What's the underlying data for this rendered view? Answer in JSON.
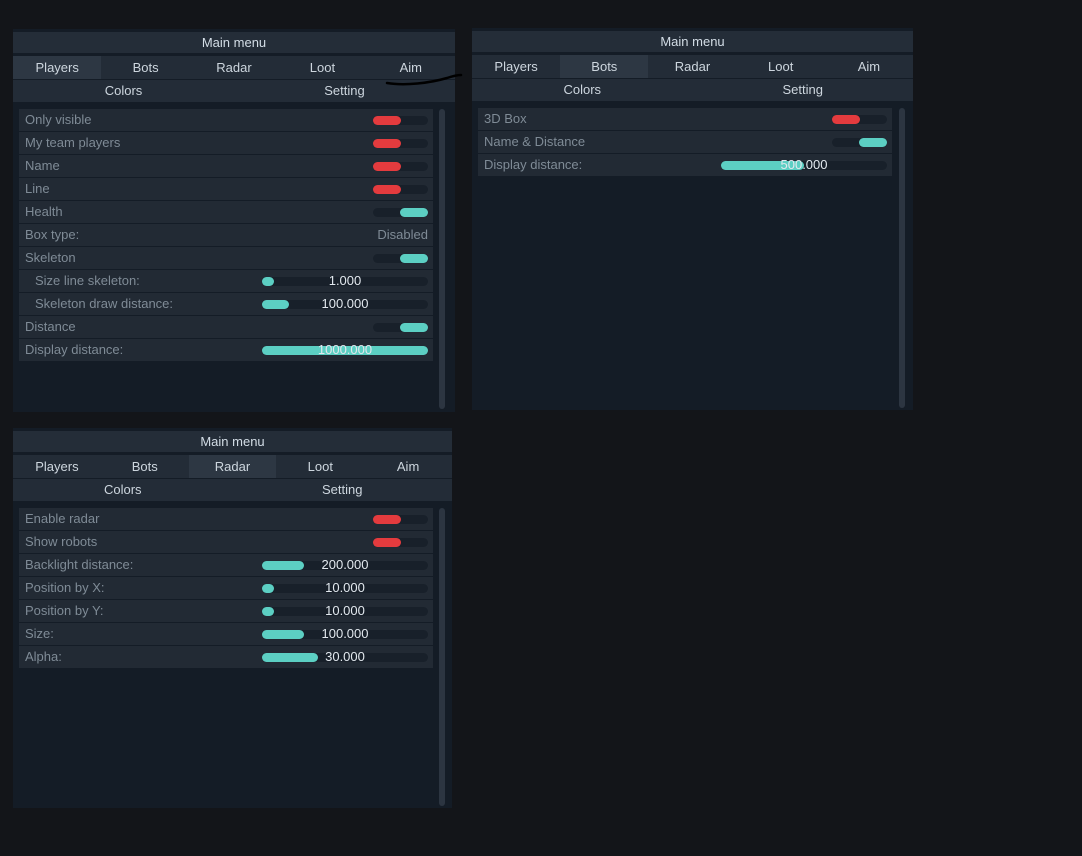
{
  "menu_title": "Main menu",
  "tabs": [
    "Players",
    "Bots",
    "Radar",
    "Loot",
    "Aim"
  ],
  "subtabs": [
    "Colors",
    "Setting"
  ],
  "colors": {
    "on": "#5ccfc3",
    "off": "#e43b3e",
    "background": "#131519",
    "panel": "#141c26",
    "row": "#222a34"
  },
  "panel_players": {
    "active_tab": "Players",
    "rows": [
      {
        "label": "Only visible",
        "state": "off"
      },
      {
        "label": "My team players",
        "state": "off"
      },
      {
        "label": "Name",
        "state": "off"
      },
      {
        "label": "Line",
        "state": "off"
      },
      {
        "label": "Health",
        "state": "on"
      },
      {
        "label": "Box type:",
        "value": "Disabled"
      },
      {
        "label": "Skeleton",
        "state": "on"
      },
      {
        "label": "Size line skeleton:",
        "value": "1.000",
        "fill_fraction": 0.07
      },
      {
        "label": "Skeleton draw distance:",
        "value": "100.000",
        "fill_fraction": 0.16
      },
      {
        "label": "Distance",
        "state": "on"
      },
      {
        "label": "Display distance:",
        "value": "1000.000",
        "fill_fraction": 1.0
      }
    ]
  },
  "panel_bots": {
    "active_tab": "Bots",
    "rows": [
      {
        "label": "3D Box",
        "state": "off"
      },
      {
        "label": "Name & Distance",
        "state": "on"
      },
      {
        "label": "Display distance:",
        "value": "500.000",
        "fill_fraction": 0.5
      }
    ]
  },
  "panel_radar": {
    "active_tab": "Radar",
    "rows": [
      {
        "label": "Enable radar",
        "state": "off"
      },
      {
        "label": "Show robots",
        "state": "off"
      },
      {
        "label": "Backlight distance:",
        "value": "200.000",
        "fill_fraction": 0.25
      },
      {
        "label": "Position by X:",
        "value": "10.000",
        "fill_fraction": 0.07
      },
      {
        "label": "Position by Y:",
        "value": "10.000",
        "fill_fraction": 0.07
      },
      {
        "label": "Size:",
        "value": "100.000",
        "fill_fraction": 0.25
      },
      {
        "label": "Alpha:",
        "value": "30.000",
        "fill_fraction": 0.34
      }
    ]
  }
}
